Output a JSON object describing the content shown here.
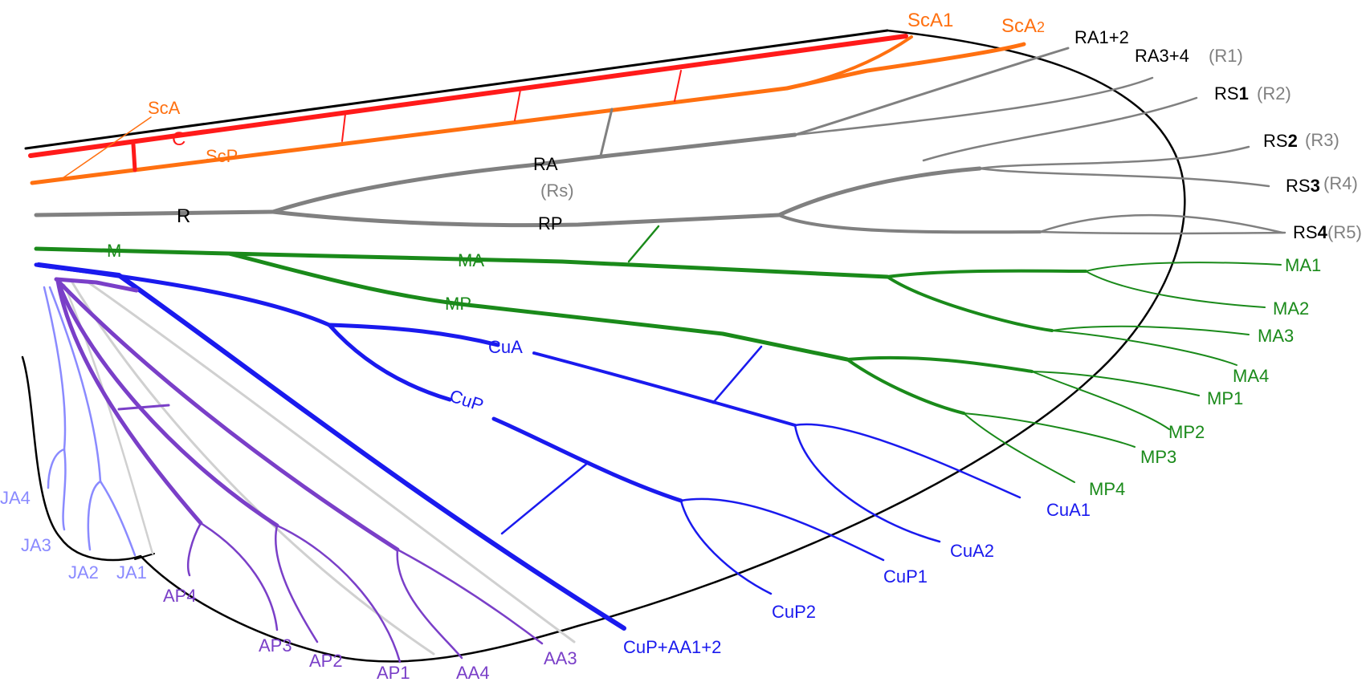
{
  "colors": {
    "costa": "#ff1a1a",
    "subcosta": "#ff7010",
    "radius": "#808080",
    "media": "#1a8a1a",
    "cubitus": "#1a1aee",
    "anal": "#7a3fc8",
    "jugal": "#8a8aff",
    "intercalary": "#d0d0d0",
    "outline": "#000000"
  },
  "labels": {
    "ScA1": "ScA1",
    "ScA2": "ScA",
    "ScA2_sub": "2",
    "RA12": "RA1+2",
    "RA34": "RA3+4",
    "RA34_alt": "(R1)",
    "RS1": "RS",
    "RS1_num": "1",
    "RS1_alt": "(R2)",
    "RS2": "RS",
    "RS2_num": "2",
    "RS2_alt": "(R3)",
    "RS3": "RS",
    "RS3_num": "3",
    "RS3_alt": "(R4)",
    "RS4": "RS",
    "RS4_num": "4",
    "RS4_alt": "(R5)",
    "ScA": "ScA",
    "C": "C",
    "ScP": "ScP",
    "RA": "RA",
    "Rs": "(Rs)",
    "R": "R",
    "RP": "RP",
    "M": "M",
    "MA": "MA",
    "MP": "MP",
    "CuA": "CuA",
    "CuP": "CuP",
    "MA1": "MA1",
    "MA2": "MA2",
    "MA3": "MA3",
    "MA4": "MA4",
    "MP1": "MP1",
    "MP2": "MP2",
    "MP3": "MP3",
    "MP4": "MP4",
    "CuA1": "CuA1",
    "CuA2": "CuA2",
    "CuP1": "CuP1",
    "CuP2": "CuP2",
    "CuPAA12": "CuP+AA1+2",
    "JA4": "JA4",
    "JA3": "JA3",
    "JA2": "JA2",
    "JA1": "JA1",
    "AP4": "AP4",
    "AP3": "AP3",
    "AP2": "AP2",
    "AP1": "AP1",
    "AA4": "AA4",
    "AA3": "AA3"
  }
}
